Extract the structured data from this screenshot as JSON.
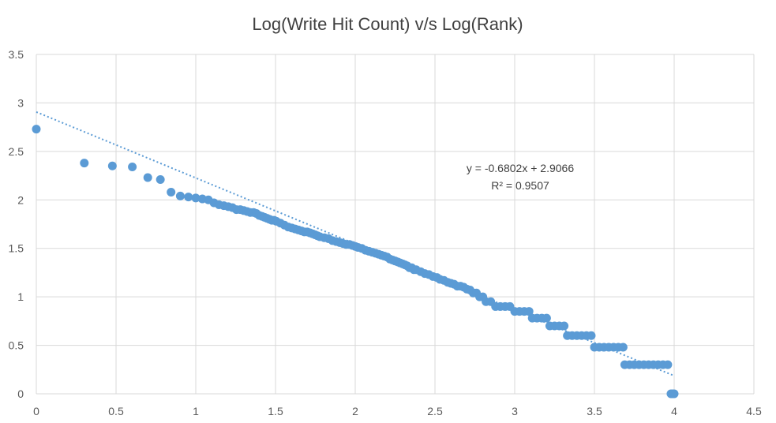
{
  "chart_data": {
    "type": "scatter",
    "title": "Log(Write Hit Count) v/s Log(Rank)",
    "xlabel": "",
    "ylabel": "",
    "xlim": [
      0,
      4.5
    ],
    "ylim": [
      0,
      3.5
    ],
    "x_ticks": [
      "0",
      "0.5",
      "1",
      "1.5",
      "2",
      "2.5",
      "3",
      "3.5",
      "4",
      "4.5"
    ],
    "y_ticks": [
      "0",
      "0.5",
      "1",
      "1.5",
      "2",
      "2.5",
      "3",
      "3.5"
    ],
    "x_tick_values": [
      0,
      0.5,
      1,
      1.5,
      2,
      2.5,
      3,
      3.5,
      4,
      4.5
    ],
    "y_tick_values": [
      0,
      0.5,
      1,
      1.5,
      2,
      2.5,
      3,
      3.5
    ],
    "grid": true,
    "legend": "none",
    "colors": {
      "marker": "#5b9bd5",
      "trendline": "#5b9bd5",
      "grid": "#d9d9d9"
    },
    "series": [
      {
        "values": [
          [
            0,
            2.73
          ],
          [
            0.301,
            2.38
          ],
          [
            0.477,
            2.35
          ],
          [
            0.602,
            2.34
          ],
          [
            0.699,
            2.23
          ],
          [
            0.778,
            2.21
          ],
          [
            0.845,
            2.08
          ],
          [
            0.903,
            2.04
          ],
          [
            0.954,
            2.03
          ],
          [
            1.0,
            2.02
          ],
          [
            1.041,
            2.01
          ],
          [
            1.079,
            2.0
          ],
          [
            1.114,
            1.97
          ],
          [
            1.146,
            1.95
          ],
          [
            1.176,
            1.94
          ],
          [
            1.204,
            1.93
          ],
          [
            1.23,
            1.92
          ],
          [
            1.255,
            1.9
          ],
          [
            1.279,
            1.9
          ],
          [
            1.301,
            1.89
          ],
          [
            1.322,
            1.88
          ],
          [
            1.342,
            1.87
          ],
          [
            1.362,
            1.87
          ],
          [
            1.38,
            1.86
          ],
          [
            1.398,
            1.84
          ],
          [
            1.415,
            1.83
          ],
          [
            1.431,
            1.82
          ],
          [
            1.447,
            1.81
          ],
          [
            1.462,
            1.8
          ],
          [
            1.477,
            1.79
          ],
          [
            1.491,
            1.79
          ],
          [
            1.505,
            1.78
          ],
          [
            1.531,
            1.76
          ],
          [
            1.556,
            1.74
          ],
          [
            1.58,
            1.72
          ],
          [
            1.602,
            1.71
          ],
          [
            1.623,
            1.7
          ],
          [
            1.643,
            1.69
          ],
          [
            1.663,
            1.68
          ],
          [
            1.681,
            1.67
          ],
          [
            1.699,
            1.67
          ],
          [
            1.716,
            1.66
          ],
          [
            1.732,
            1.65
          ],
          [
            1.748,
            1.64
          ],
          [
            1.763,
            1.63
          ],
          [
            1.778,
            1.62
          ],
          [
            1.806,
            1.61
          ],
          [
            1.833,
            1.6
          ],
          [
            1.857,
            1.58
          ],
          [
            1.881,
            1.57
          ],
          [
            1.903,
            1.56
          ],
          [
            1.924,
            1.55
          ],
          [
            1.944,
            1.54
          ],
          [
            1.964,
            1.54
          ],
          [
            1.982,
            1.53
          ],
          [
            2.0,
            1.52
          ],
          [
            2.017,
            1.51
          ],
          [
            2.041,
            1.5
          ],
          [
            2.064,
            1.48
          ],
          [
            2.086,
            1.47
          ],
          [
            2.107,
            1.46
          ],
          [
            2.127,
            1.45
          ],
          [
            2.146,
            1.44
          ],
          [
            2.164,
            1.43
          ],
          [
            2.182,
            1.42
          ],
          [
            2.2,
            1.41
          ],
          [
            2.217,
            1.39
          ],
          [
            2.234,
            1.38
          ],
          [
            2.25,
            1.37
          ],
          [
            2.266,
            1.36
          ],
          [
            2.281,
            1.35
          ],
          [
            2.297,
            1.34
          ],
          [
            2.312,
            1.33
          ],
          [
            2.326,
            1.32
          ],
          [
            2.34,
            1.3
          ],
          [
            2.354,
            1.3
          ],
          [
            2.368,
            1.28
          ],
          [
            2.382,
            1.28
          ],
          [
            2.41,
            1.26
          ],
          [
            2.436,
            1.24
          ],
          [
            2.462,
            1.23
          ],
          [
            2.487,
            1.21
          ],
          [
            2.512,
            1.2
          ],
          [
            2.531,
            1.18
          ],
          [
            2.556,
            1.17
          ],
          [
            2.58,
            1.15
          ],
          [
            2.6,
            1.14
          ],
          [
            2.62,
            1.13
          ],
          [
            2.64,
            1.11
          ],
          [
            2.66,
            1.11
          ],
          [
            2.68,
            1.1
          ],
          [
            2.7,
            1.08
          ],
          [
            2.72,
            1.07
          ],
          [
            2.74,
            1.04
          ],
          [
            2.76,
            1.04
          ],
          [
            2.78,
            1.0
          ],
          [
            2.8,
            1.0
          ],
          [
            2.82,
            0.95
          ],
          [
            2.85,
            0.95
          ],
          [
            2.88,
            0.9
          ],
          [
            2.91,
            0.9
          ],
          [
            2.94,
            0.9
          ],
          [
            2.97,
            0.9
          ],
          [
            3.0,
            0.85
          ],
          [
            3.03,
            0.85
          ],
          [
            3.06,
            0.85
          ],
          [
            3.09,
            0.85
          ],
          [
            3.11,
            0.78
          ],
          [
            3.14,
            0.78
          ],
          [
            3.17,
            0.78
          ],
          [
            3.2,
            0.78
          ],
          [
            3.22,
            0.7
          ],
          [
            3.25,
            0.7
          ],
          [
            3.28,
            0.7
          ],
          [
            3.31,
            0.7
          ],
          [
            3.33,
            0.6
          ],
          [
            3.36,
            0.6
          ],
          [
            3.39,
            0.6
          ],
          [
            3.42,
            0.6
          ],
          [
            3.45,
            0.6
          ],
          [
            3.48,
            0.6
          ],
          [
            3.5,
            0.48
          ],
          [
            3.53,
            0.48
          ],
          [
            3.56,
            0.48
          ],
          [
            3.59,
            0.48
          ],
          [
            3.62,
            0.48
          ],
          [
            3.65,
            0.48
          ],
          [
            3.68,
            0.48
          ],
          [
            3.69,
            0.3
          ],
          [
            3.72,
            0.3
          ],
          [
            3.75,
            0.3
          ],
          [
            3.78,
            0.3
          ],
          [
            3.81,
            0.3
          ],
          [
            3.84,
            0.3
          ],
          [
            3.87,
            0.3
          ],
          [
            3.9,
            0.3
          ],
          [
            3.93,
            0.3
          ],
          [
            3.96,
            0.3
          ],
          [
            3.98,
            0.0
          ],
          [
            3.99,
            0.0
          ],
          [
            4.0,
            0.0
          ]
        ]
      }
    ],
    "trendline": {
      "type": "linear",
      "slope": -0.6802,
      "intercept": 2.9066,
      "x_range": [
        0,
        4.0
      ],
      "equation": "y = -0.6802x + 2.9066",
      "r2_label": "R² = 0.9507"
    }
  }
}
